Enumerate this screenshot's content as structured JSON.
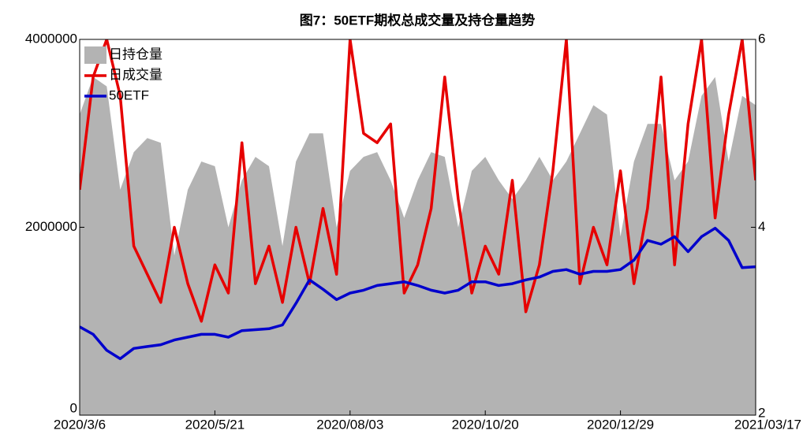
{
  "chart_data": {
    "type": "line",
    "title": "图7：50ETF期权总成交量及持仓量趋势",
    "categories": [
      "2020/3/6",
      null,
      null,
      null,
      null,
      null,
      null,
      null,
      null,
      null,
      "2020/5/21",
      null,
      null,
      null,
      null,
      null,
      null,
      null,
      null,
      null,
      "2020/08/03",
      null,
      null,
      null,
      null,
      null,
      null,
      null,
      null,
      null,
      "2020/10/20",
      null,
      null,
      null,
      null,
      null,
      null,
      null,
      null,
      null,
      "2020/12/29",
      null,
      null,
      null,
      null,
      null,
      null,
      null,
      null,
      null,
      "2021/03/17"
    ],
    "series": [
      {
        "name": "日持仓量",
        "kind": "area",
        "color": "#b3b3b3",
        "values": [
          3200000,
          3600000,
          3500000,
          2400000,
          2800000,
          2950000,
          2900000,
          1700000,
          2400000,
          2700000,
          2650000,
          2000000,
          2500000,
          2750000,
          2650000,
          1800000,
          2700000,
          3000000,
          3000000,
          2000000,
          2600000,
          2750000,
          2800000,
          2500000,
          2100000,
          2500000,
          2800000,
          2750000,
          2000000,
          2600000,
          2750000,
          2500000,
          2300000,
          2500000,
          2750000,
          2500000,
          2700000,
          3000000,
          3300000,
          3200000,
          1900000,
          2700000,
          3100000,
          3100000,
          2500000,
          2700000,
          3400000,
          3600000,
          2700000,
          3400000,
          3300000
        ]
      },
      {
        "name": "日成交量",
        "kind": "line",
        "color": "#e60000",
        "values": [
          2400000,
          3600000,
          4000000,
          3400000,
          1800000,
          1500000,
          1200000,
          2000000,
          1400000,
          1000000,
          1600000,
          1300000,
          2900000,
          1400000,
          1800000,
          1200000,
          2000000,
          1400000,
          2200000,
          1500000,
          4000000,
          3000000,
          2900000,
          3100000,
          1300000,
          1600000,
          2200000,
          3600000,
          2300000,
          1300000,
          1800000,
          1500000,
          2500000,
          1100000,
          1600000,
          2600000,
          4000000,
          1400000,
          2000000,
          1600000,
          2600000,
          1400000,
          2200000,
          3600000,
          1600000,
          3100000,
          4000000,
          2100000,
          3200000,
          4000000,
          2500000
        ]
      },
      {
        "name": "50ETF",
        "kind": "line",
        "axis": "y2",
        "color": "#0000cc",
        "values": [
          2.94,
          2.86,
          2.69,
          2.6,
          2.71,
          2.73,
          2.75,
          2.8,
          2.83,
          2.86,
          2.86,
          2.83,
          2.9,
          2.91,
          2.92,
          2.96,
          3.19,
          3.44,
          3.34,
          3.23,
          3.3,
          3.33,
          3.38,
          3.4,
          3.42,
          3.38,
          3.33,
          3.3,
          3.33,
          3.42,
          3.42,
          3.38,
          3.4,
          3.44,
          3.47,
          3.53,
          3.55,
          3.5,
          3.53,
          3.53,
          3.55,
          3.65,
          3.86,
          3.82,
          3.9,
          3.74,
          3.9,
          3.99,
          3.86,
          3.57,
          3.58
        ]
      }
    ],
    "ylim": [
      0,
      4000000
    ],
    "yticks": [
      0,
      2000000,
      4000000
    ],
    "y2lim": [
      2,
      6
    ],
    "y2ticks": [
      2,
      4,
      6
    ],
    "legend": "upper-left",
    "grid": false
  }
}
